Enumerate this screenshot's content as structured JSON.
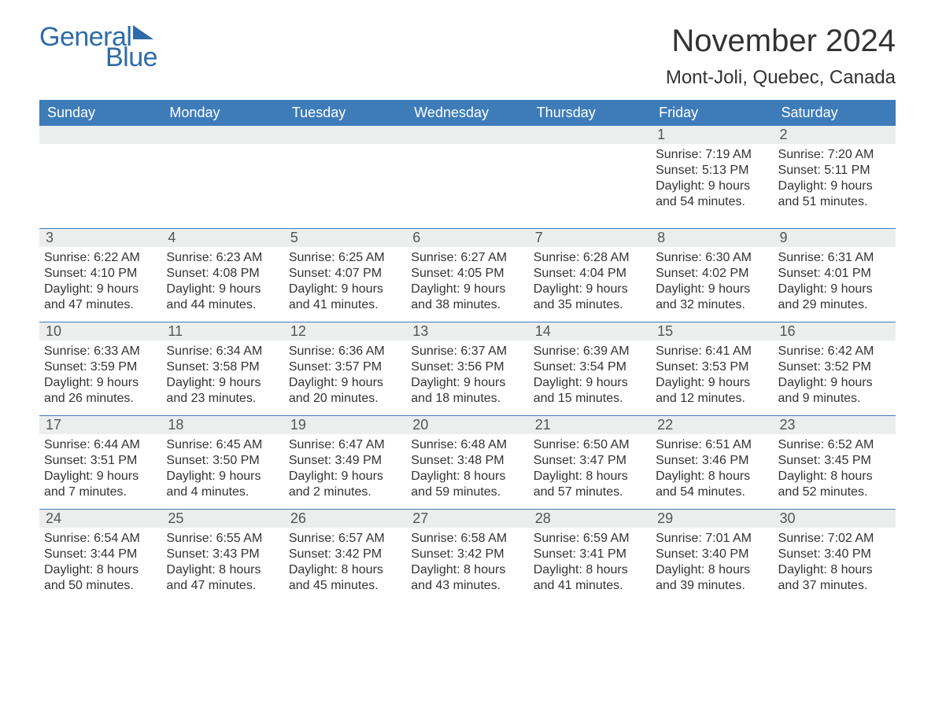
{
  "brand": {
    "general": "General",
    "blue": "Blue"
  },
  "title": "November 2024",
  "location": "Mont-Joli, Quebec, Canada",
  "colors": {
    "header_bg": "#3d7cb8",
    "header_text": "#ffffff",
    "daynum_bg": "#eceded",
    "body_text": "#333333",
    "brand": "#2e6ba8",
    "row_border": "#3d7cb8"
  },
  "day_headers": [
    "Sunday",
    "Monday",
    "Tuesday",
    "Wednesday",
    "Thursday",
    "Friday",
    "Saturday"
  ],
  "weeks": [
    [
      null,
      null,
      null,
      null,
      null,
      {
        "n": "1",
        "sunrise": "Sunrise: 7:19 AM",
        "sunset": "Sunset: 5:13 PM",
        "daylight1": "Daylight: 9 hours",
        "daylight2": "and 54 minutes."
      },
      {
        "n": "2",
        "sunrise": "Sunrise: 7:20 AM",
        "sunset": "Sunset: 5:11 PM",
        "daylight1": "Daylight: 9 hours",
        "daylight2": "and 51 minutes."
      }
    ],
    [
      {
        "n": "3",
        "sunrise": "Sunrise: 6:22 AM",
        "sunset": "Sunset: 4:10 PM",
        "daylight1": "Daylight: 9 hours",
        "daylight2": "and 47 minutes."
      },
      {
        "n": "4",
        "sunrise": "Sunrise: 6:23 AM",
        "sunset": "Sunset: 4:08 PM",
        "daylight1": "Daylight: 9 hours",
        "daylight2": "and 44 minutes."
      },
      {
        "n": "5",
        "sunrise": "Sunrise: 6:25 AM",
        "sunset": "Sunset: 4:07 PM",
        "daylight1": "Daylight: 9 hours",
        "daylight2": "and 41 minutes."
      },
      {
        "n": "6",
        "sunrise": "Sunrise: 6:27 AM",
        "sunset": "Sunset: 4:05 PM",
        "daylight1": "Daylight: 9 hours",
        "daylight2": "and 38 minutes."
      },
      {
        "n": "7",
        "sunrise": "Sunrise: 6:28 AM",
        "sunset": "Sunset: 4:04 PM",
        "daylight1": "Daylight: 9 hours",
        "daylight2": "and 35 minutes."
      },
      {
        "n": "8",
        "sunrise": "Sunrise: 6:30 AM",
        "sunset": "Sunset: 4:02 PM",
        "daylight1": "Daylight: 9 hours",
        "daylight2": "and 32 minutes."
      },
      {
        "n": "9",
        "sunrise": "Sunrise: 6:31 AM",
        "sunset": "Sunset: 4:01 PM",
        "daylight1": "Daylight: 9 hours",
        "daylight2": "and 29 minutes."
      }
    ],
    [
      {
        "n": "10",
        "sunrise": "Sunrise: 6:33 AM",
        "sunset": "Sunset: 3:59 PM",
        "daylight1": "Daylight: 9 hours",
        "daylight2": "and 26 minutes."
      },
      {
        "n": "11",
        "sunrise": "Sunrise: 6:34 AM",
        "sunset": "Sunset: 3:58 PM",
        "daylight1": "Daylight: 9 hours",
        "daylight2": "and 23 minutes."
      },
      {
        "n": "12",
        "sunrise": "Sunrise: 6:36 AM",
        "sunset": "Sunset: 3:57 PM",
        "daylight1": "Daylight: 9 hours",
        "daylight2": "and 20 minutes."
      },
      {
        "n": "13",
        "sunrise": "Sunrise: 6:37 AM",
        "sunset": "Sunset: 3:56 PM",
        "daylight1": "Daylight: 9 hours",
        "daylight2": "and 18 minutes."
      },
      {
        "n": "14",
        "sunrise": "Sunrise: 6:39 AM",
        "sunset": "Sunset: 3:54 PM",
        "daylight1": "Daylight: 9 hours",
        "daylight2": "and 15 minutes."
      },
      {
        "n": "15",
        "sunrise": "Sunrise: 6:41 AM",
        "sunset": "Sunset: 3:53 PM",
        "daylight1": "Daylight: 9 hours",
        "daylight2": "and 12 minutes."
      },
      {
        "n": "16",
        "sunrise": "Sunrise: 6:42 AM",
        "sunset": "Sunset: 3:52 PM",
        "daylight1": "Daylight: 9 hours",
        "daylight2": "and 9 minutes."
      }
    ],
    [
      {
        "n": "17",
        "sunrise": "Sunrise: 6:44 AM",
        "sunset": "Sunset: 3:51 PM",
        "daylight1": "Daylight: 9 hours",
        "daylight2": "and 7 minutes."
      },
      {
        "n": "18",
        "sunrise": "Sunrise: 6:45 AM",
        "sunset": "Sunset: 3:50 PM",
        "daylight1": "Daylight: 9 hours",
        "daylight2": "and 4 minutes."
      },
      {
        "n": "19",
        "sunrise": "Sunrise: 6:47 AM",
        "sunset": "Sunset: 3:49 PM",
        "daylight1": "Daylight: 9 hours",
        "daylight2": "and 2 minutes."
      },
      {
        "n": "20",
        "sunrise": "Sunrise: 6:48 AM",
        "sunset": "Sunset: 3:48 PM",
        "daylight1": "Daylight: 8 hours",
        "daylight2": "and 59 minutes."
      },
      {
        "n": "21",
        "sunrise": "Sunrise: 6:50 AM",
        "sunset": "Sunset: 3:47 PM",
        "daylight1": "Daylight: 8 hours",
        "daylight2": "and 57 minutes."
      },
      {
        "n": "22",
        "sunrise": "Sunrise: 6:51 AM",
        "sunset": "Sunset: 3:46 PM",
        "daylight1": "Daylight: 8 hours",
        "daylight2": "and 54 minutes."
      },
      {
        "n": "23",
        "sunrise": "Sunrise: 6:52 AM",
        "sunset": "Sunset: 3:45 PM",
        "daylight1": "Daylight: 8 hours",
        "daylight2": "and 52 minutes."
      }
    ],
    [
      {
        "n": "24",
        "sunrise": "Sunrise: 6:54 AM",
        "sunset": "Sunset: 3:44 PM",
        "daylight1": "Daylight: 8 hours",
        "daylight2": "and 50 minutes."
      },
      {
        "n": "25",
        "sunrise": "Sunrise: 6:55 AM",
        "sunset": "Sunset: 3:43 PM",
        "daylight1": "Daylight: 8 hours",
        "daylight2": "and 47 minutes."
      },
      {
        "n": "26",
        "sunrise": "Sunrise: 6:57 AM",
        "sunset": "Sunset: 3:42 PM",
        "daylight1": "Daylight: 8 hours",
        "daylight2": "and 45 minutes."
      },
      {
        "n": "27",
        "sunrise": "Sunrise: 6:58 AM",
        "sunset": "Sunset: 3:42 PM",
        "daylight1": "Daylight: 8 hours",
        "daylight2": "and 43 minutes."
      },
      {
        "n": "28",
        "sunrise": "Sunrise: 6:59 AM",
        "sunset": "Sunset: 3:41 PM",
        "daylight1": "Daylight: 8 hours",
        "daylight2": "and 41 minutes."
      },
      {
        "n": "29",
        "sunrise": "Sunrise: 7:01 AM",
        "sunset": "Sunset: 3:40 PM",
        "daylight1": "Daylight: 8 hours",
        "daylight2": "and 39 minutes."
      },
      {
        "n": "30",
        "sunrise": "Sunrise: 7:02 AM",
        "sunset": "Sunset: 3:40 PM",
        "daylight1": "Daylight: 8 hours",
        "daylight2": "and 37 minutes."
      }
    ]
  ]
}
